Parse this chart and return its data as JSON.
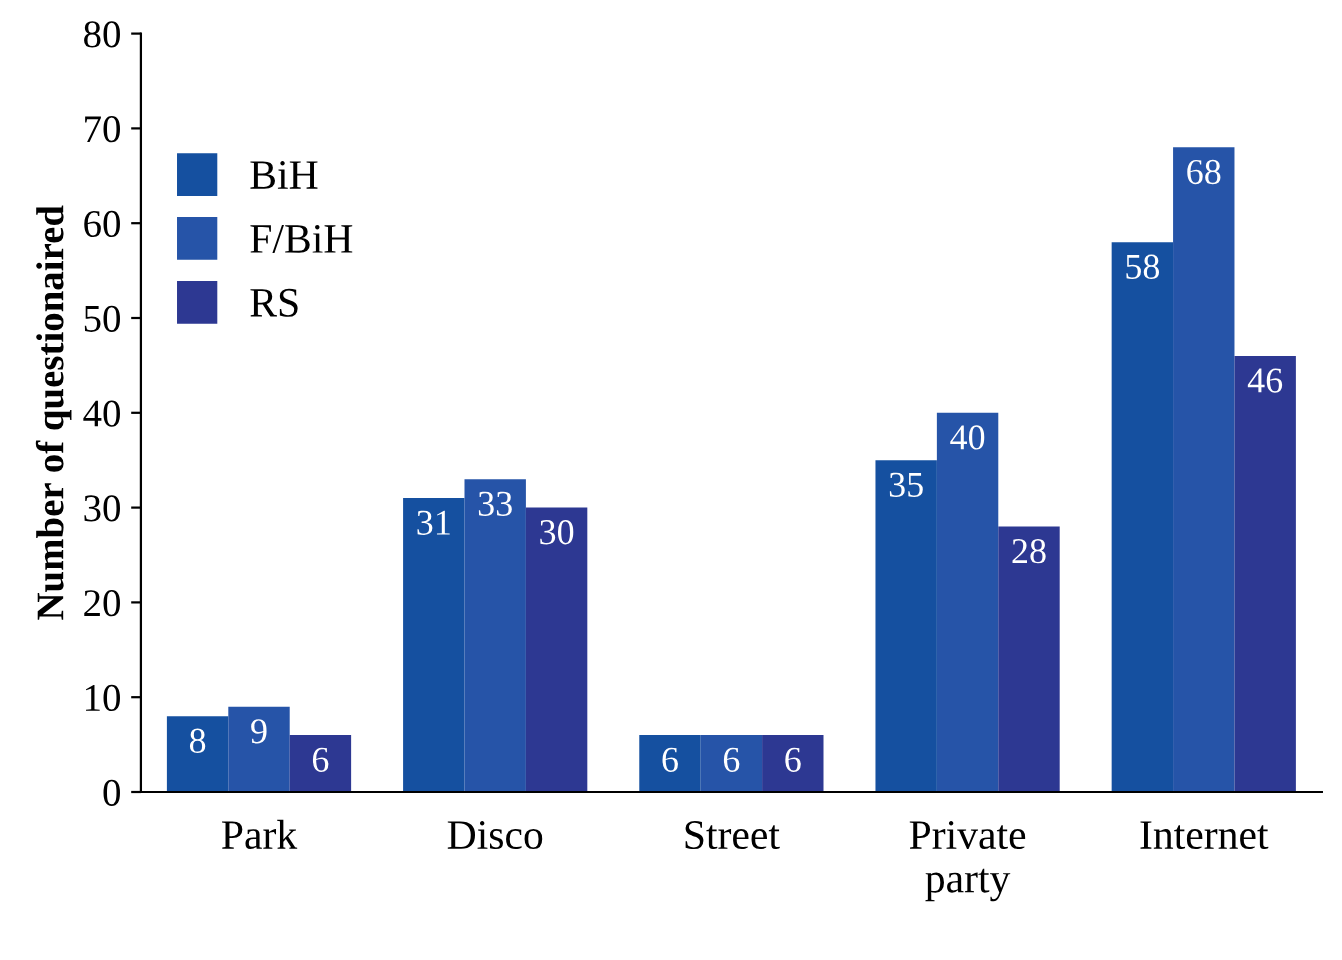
{
  "chart_data": {
    "type": "bar",
    "ylabel": "Number of questionaired",
    "categories": [
      "Park",
      "Disco",
      "Street",
      "Private party",
      "Internet"
    ],
    "series": [
      {
        "name": "BiH",
        "color": "#1550a0",
        "values": [
          8,
          31,
          6,
          35,
          58
        ]
      },
      {
        "name": "F/BiH",
        "color": "#2654a8",
        "values": [
          9,
          33,
          6,
          40,
          68
        ]
      },
      {
        "name": "RS",
        "color": "#2d3892",
        "values": [
          6,
          30,
          6,
          28,
          46
        ]
      }
    ],
    "ylim": [
      0,
      80
    ],
    "yticks": [
      0,
      10,
      20,
      30,
      40,
      50,
      60,
      70,
      80
    ],
    "grid": false,
    "legend": "top left",
    "data_labels": true
  }
}
